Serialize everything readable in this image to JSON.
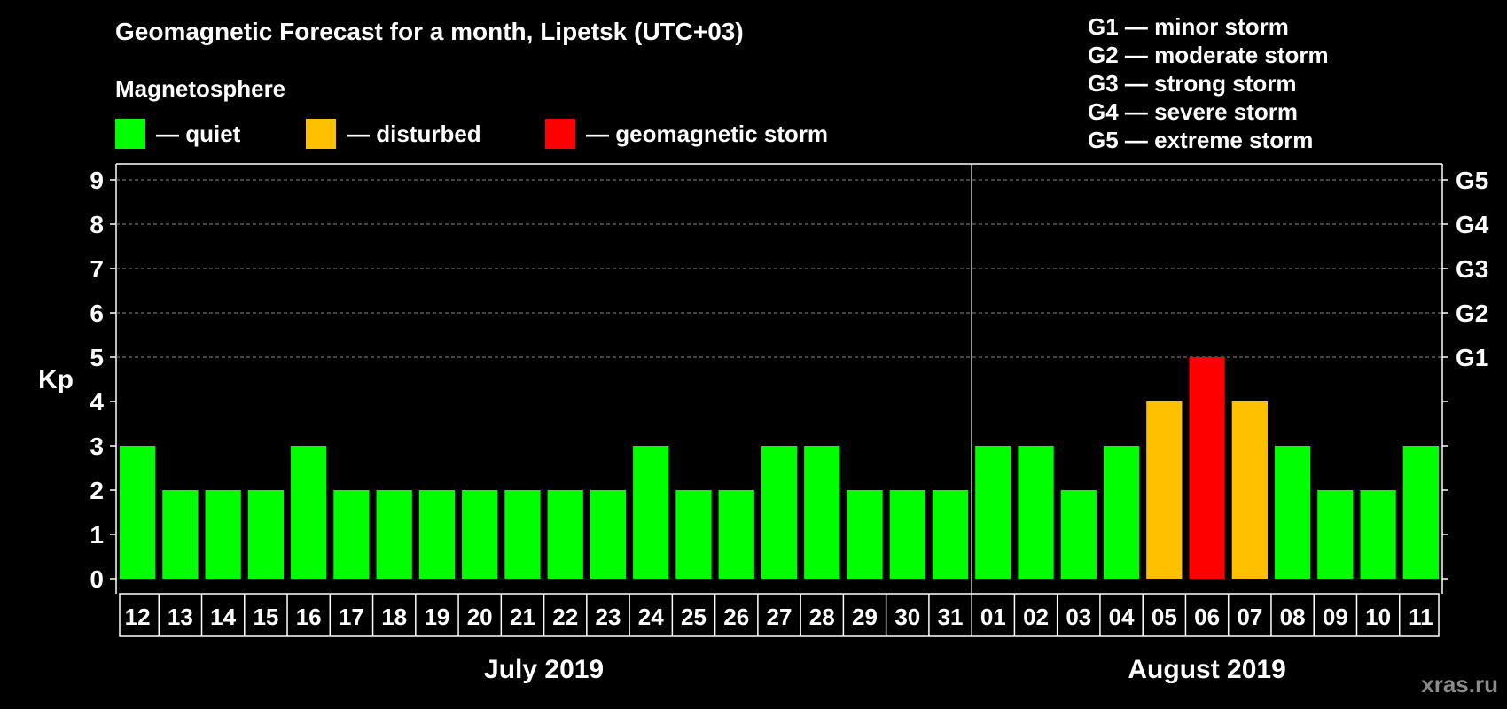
{
  "title": "Geomagnetic Forecast for a month, Lipetsk (UTC+03)",
  "legend": {
    "title": "Magnetosphere",
    "items": [
      {
        "label": "— quiet",
        "color": "#00ff00"
      },
      {
        "label": "— disturbed",
        "color": "#ffc000"
      },
      {
        "label": "— geomagnetic storm",
        "color": "#ff0000"
      }
    ]
  },
  "storm_scale": [
    "G1 — minor storm",
    "G2 — moderate storm",
    "G3 — strong storm",
    "G4 — severe storm",
    "G5 — extreme storm"
  ],
  "watermark": "xras.ru",
  "chart_data": {
    "type": "bar",
    "ylabel": "Kp",
    "ylim": [
      0,
      9
    ],
    "yticks": [
      "0",
      "1",
      "2",
      "3",
      "4",
      "5",
      "6",
      "7",
      "8",
      "9"
    ],
    "right_axis_labels": [
      {
        "value": 5,
        "label": "G1"
      },
      {
        "value": 6,
        "label": "G2"
      },
      {
        "value": 7,
        "label": "G3"
      },
      {
        "value": 8,
        "label": "G4"
      },
      {
        "value": 9,
        "label": "G5"
      }
    ],
    "grid": "dashed horizontal at 5,6,7,8,9",
    "categories": [
      "12",
      "13",
      "14",
      "15",
      "16",
      "17",
      "18",
      "19",
      "20",
      "21",
      "22",
      "23",
      "24",
      "25",
      "26",
      "27",
      "28",
      "29",
      "30",
      "31",
      "01",
      "02",
      "03",
      "04",
      "05",
      "06",
      "07",
      "08",
      "09",
      "10",
      "11"
    ],
    "values": [
      3,
      2,
      2,
      2,
      3,
      2,
      2,
      2,
      2,
      2,
      2,
      2,
      3,
      2,
      2,
      3,
      3,
      2,
      2,
      2,
      3,
      3,
      2,
      3,
      4,
      5,
      4,
      3,
      2,
      2,
      3
    ],
    "levels": [
      "quiet",
      "quiet",
      "quiet",
      "quiet",
      "quiet",
      "quiet",
      "quiet",
      "quiet",
      "quiet",
      "quiet",
      "quiet",
      "quiet",
      "quiet",
      "quiet",
      "quiet",
      "quiet",
      "quiet",
      "quiet",
      "quiet",
      "quiet",
      "quiet",
      "quiet",
      "quiet",
      "quiet",
      "disturbed",
      "storm",
      "disturbed",
      "quiet",
      "quiet",
      "quiet",
      "quiet"
    ],
    "level_colors": {
      "quiet": "#00ff00",
      "disturbed": "#ffc000",
      "storm": "#ff0000"
    },
    "months": [
      {
        "label": "July 2019",
        "count": 20
      },
      {
        "label": "August 2019",
        "count": 11
      }
    ]
  }
}
